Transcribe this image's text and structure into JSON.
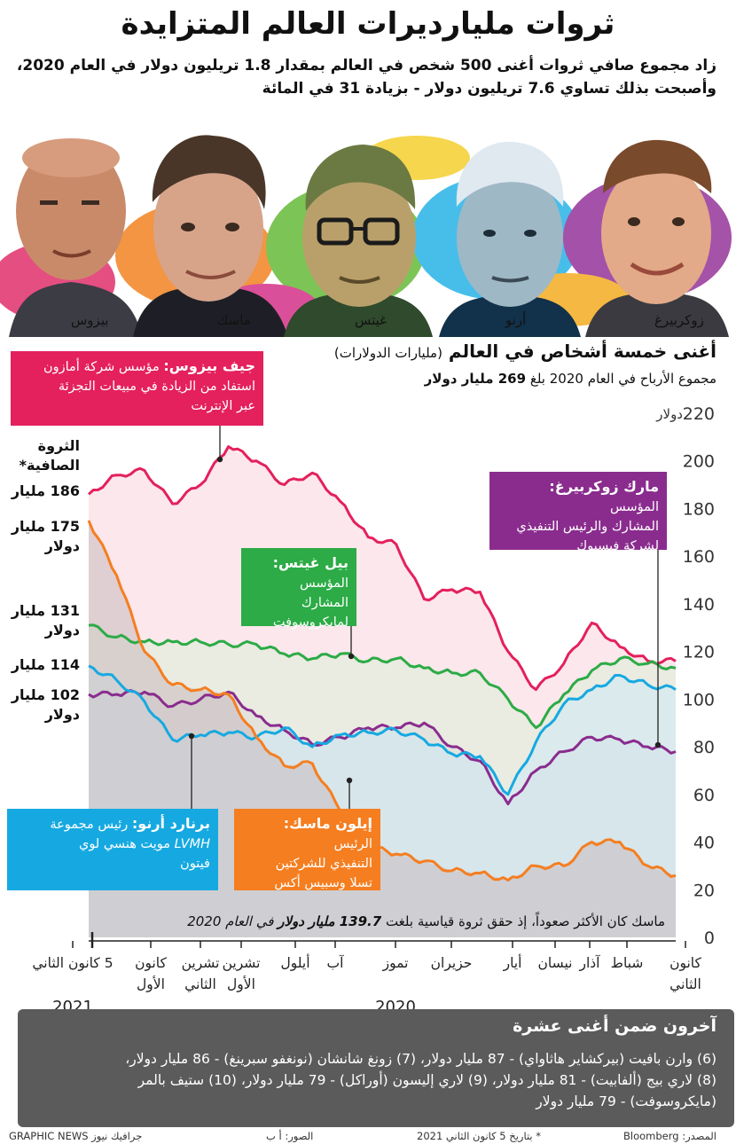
{
  "header": {
    "title": "ثروات مليارديرات العالم المتزايدة",
    "subtitle_line1": "زاد مجموع صافي ثروات أغنى 500 شخص في العالم بمقدار 1.8 تريليون دولار في العام 2020،",
    "subtitle_line2": "وأصبحت بذلك تساوي 7.6 تريليون دولار - بزيادة 31 في المائة"
  },
  "portraits": [
    {
      "name": "بيزوس"
    },
    {
      "name": "ماسك"
    },
    {
      "name": "غيتس"
    },
    {
      "name": "أرنو"
    },
    {
      "name": "زوكربيرغ"
    }
  ],
  "panel": {
    "title": "أغنى خمسة أشخاص في العالم",
    "unit": "(مليارات الدولارات)",
    "profits_prefix": "مجموع الأرباح في العام 2020 بلغ",
    "profits_value": "269 مليار دولار"
  },
  "annotations": {
    "bezos_name": "جيف بيزوس:",
    "bezos_text1": " مؤسس شركة أمازون",
    "bezos_text2": "استفاد من الزيادة في مبيعات التجزئة",
    "bezos_text3": "عبر الإنترنت",
    "zuck_name": "مارك زوكربيرغ:",
    "zuck_text1": " المؤسس",
    "zuck_text2": "المشارك والرئيس التنفيذي",
    "zuck_text3": "لشركة فيسبوك",
    "gates_name": "بيل غيتس:",
    "gates_text1": "المؤسس المشارك",
    "gates_text2": "لمايكروسوفت",
    "arnault_name": "برنارد أرنو:",
    "arnault_text1": " رئيس مجموعة",
    "arnault_text2": "LVMH",
    "arnault_text3": " مويت هنسي لوي",
    "arnault_text4": "فيتون",
    "musk_name": "إيلون ماسك:",
    "musk_text1": " الرئيس",
    "musk_text2": "التنفيذي للشركتين",
    "musk_text3": "تسلا وسبيس أكس",
    "musk_note_prefix": "ماسك كان الأكثر صعوداً، إذ حقق ثروة قياسية بلغت",
    "musk_note_value": "139.7 مليار دولار",
    "musk_note_suffix": "في العام 2020"
  },
  "levels": {
    "header1": "الثروة",
    "header2": "الصافية*",
    "bezos": "186 مليار",
    "musk1": "175 مليار",
    "musk2": "دولار",
    "gates1": "131 مليار",
    "gates2": "دولار",
    "arnault": "114 مليار",
    "zuck1": "102 مليار",
    "zuck2": "دولار"
  },
  "y_axis_currency": "دولار",
  "x_years": {
    "left": "2021",
    "right": "2020"
  },
  "colors": {
    "bezos": "#e4205d",
    "musk": "#f57e20",
    "gates": "#2cab46",
    "arnault": "#16a9e1",
    "zuckerberg": "#8a2c8e",
    "panel_grey": "#5b5b5c"
  },
  "chart_data": {
    "type": "line",
    "x_axis": "time (right = January 2020, left = 5 January 2021)",
    "x_labels": [
      "كانون الثاني",
      "شباط",
      "آذار",
      "نيسان",
      "أيار",
      "حزيران",
      "تموز",
      "آب",
      "أيلول",
      "تشرين الأول",
      "تشرين الثاني",
      "كانون الأول",
      "5 كانون الثاني"
    ],
    "ylim": [
      0,
      220
    ],
    "yticks": [
      0,
      20,
      40,
      60,
      80,
      100,
      120,
      140,
      160,
      180,
      200,
      220
    ],
    "grid": false,
    "series": [
      {
        "name": "جيف بيزوس",
        "color": "#e4205d",
        "values": [
          116,
          116,
          122,
          132,
          115,
          104,
          120,
          145,
          146,
          142,
          165,
          168,
          183,
          195,
          190,
          200,
          206,
          190,
          182,
          196,
          194,
          186
        ]
      },
      {
        "name": "مارك زوكربيرغ",
        "color": "#8a2c8e",
        "values": [
          78,
          80,
          83,
          84,
          78,
          70,
          56,
          74,
          80,
          90,
          88,
          88,
          84,
          81,
          87,
          93,
          103,
          100,
          97,
          103,
          102,
          102
        ]
      },
      {
        "name": "بيل غيتس",
        "color": "#2cab46",
        "values": [
          113,
          115,
          117,
          112,
          102,
          88,
          100,
          111,
          111,
          113,
          117,
          116,
          119,
          117,
          119,
          123,
          123,
          124,
          124,
          124,
          126,
          131
        ]
      },
      {
        "name": "برنارد أرنو",
        "color": "#16a9e1",
        "values": [
          104,
          106,
          110,
          104,
          98,
          82,
          60,
          76,
          77,
          83,
          87,
          86,
          85,
          80,
          88,
          84,
          86,
          85,
          83,
          99,
          108,
          114
        ]
      },
      {
        "name": "إيلون ماسك",
        "color": "#f57e20",
        "values": [
          26,
          30,
          40,
          40,
          30,
          30,
          24,
          27,
          28,
          32,
          35,
          38,
          53,
          73,
          72,
          84,
          102,
          104,
          106,
          120,
          152,
          175
        ]
      }
    ]
  },
  "others": {
    "title": "آخرون ضمن أغنى عشرة",
    "line1": "(6) وارن بافيت (بيركشاير هاثاواي) - 87 مليار دولار، (7) زونغ شانشان (نونغفو سبرينغ) - 86 مليار دولار،",
    "line2": "(8) لاري بيج (ألفابيت) - 81 مليار دولار، (9) لاري إليسون (أوراكل) - 79 مليار دولار، (10) ستيف بالمر",
    "line3": "(مايكروسوفت) - 79 مليار دولار"
  },
  "footer": {
    "source": "المصدر: Bloomberg",
    "date_note": "* بتاريخ 5 كانون الثاني 2021",
    "photos": "الصور: أ ب",
    "credit": "GRAPHIC NEWS جرافيك نيوز"
  }
}
